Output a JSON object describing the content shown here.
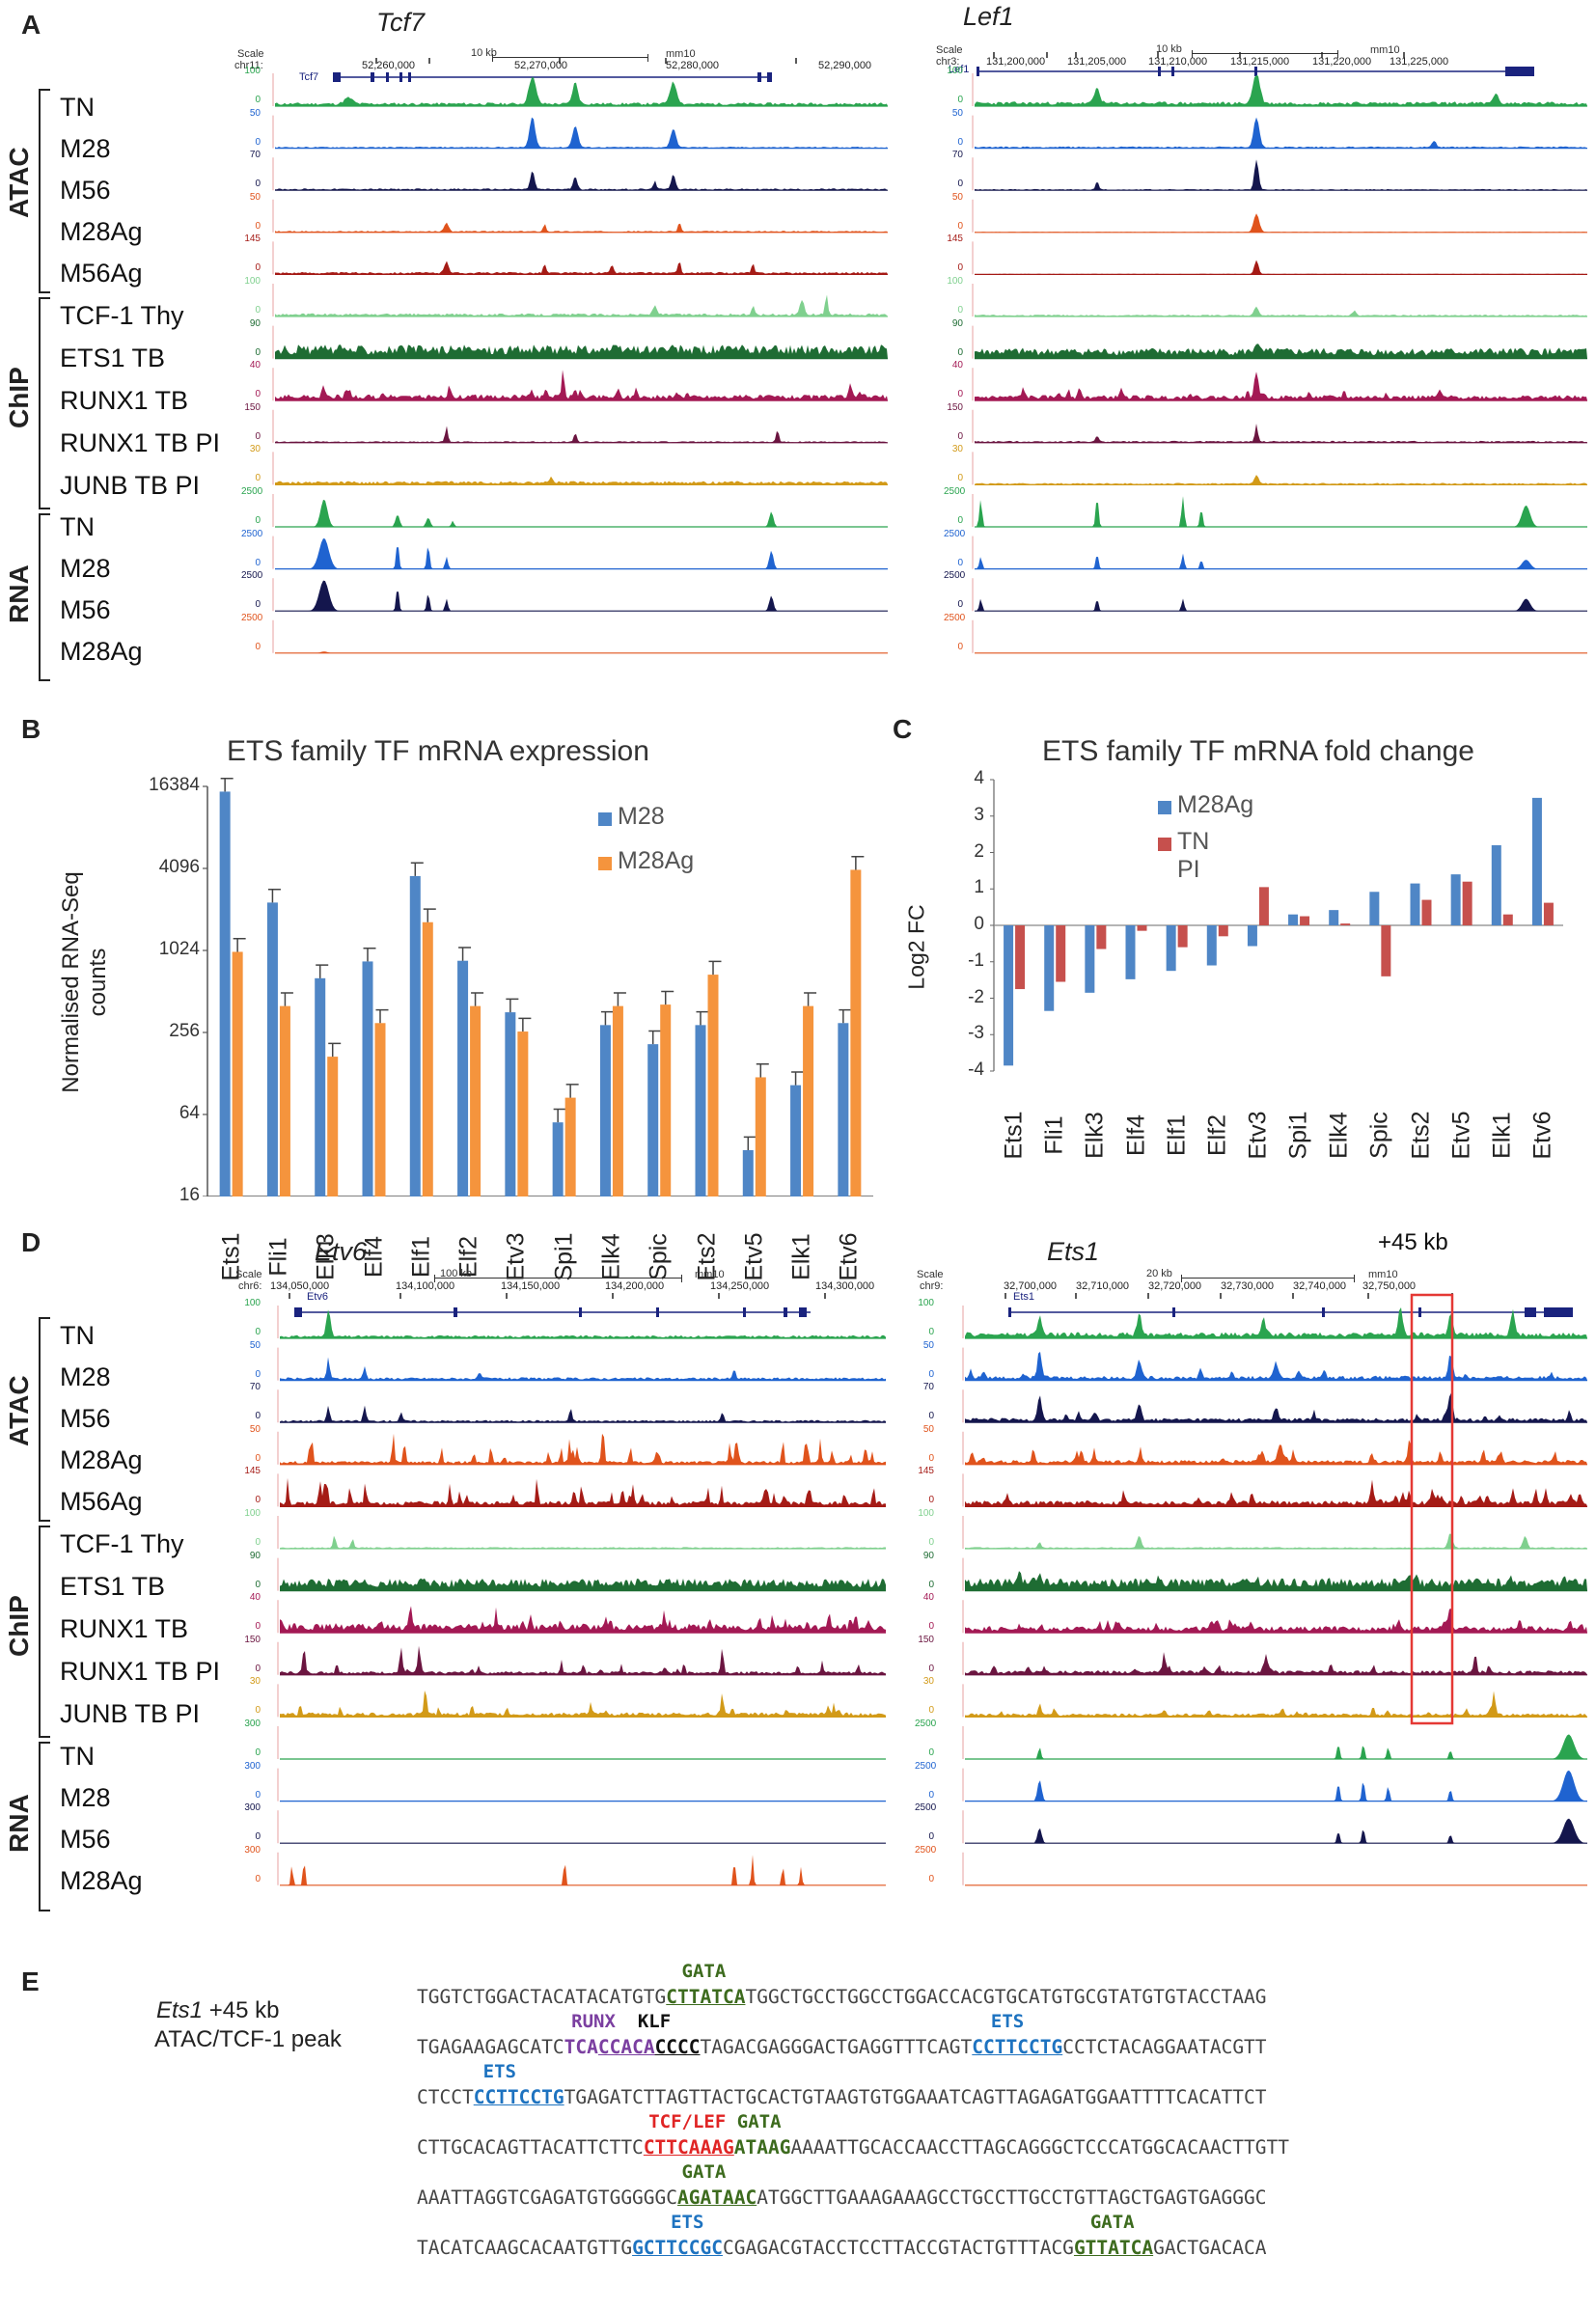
{
  "colors": {
    "TN": "#2aa44f",
    "M28": "#1f63d0",
    "M56": "#14164d",
    "M28Ag": "#e0531c",
    "M56Ag": "#a51b16",
    "TCF": "#7fd08e",
    "ETS1": "#1e6c33",
    "RUNX1": "#a31954",
    "RUNX1PI": "#6b1540",
    "JUNB": "#d29a18",
    "bar1": "#4f86c6",
    "bar2": "#f5943d",
    "fc1": "#4f86c6",
    "fc2": "#c6504d"
  },
  "panel_labels": [
    "A",
    "B",
    "C",
    "D",
    "E"
  ],
  "groups": {
    "atac": "ATAC",
    "chip": "ChIP",
    "rna": "RNA"
  },
  "panelA": {
    "rows": [
      "TN",
      "M28",
      "M56",
      "M28Ag",
      "M56Ag",
      "TCF-1 Thy",
      "ETS1 TB",
      "RUNX1 TB",
      "RUNX1 TB PI",
      "JUNB TB PI",
      "TN",
      "M28",
      "M56",
      "M28Ag"
    ],
    "left": {
      "gene": "Tcf7",
      "scale": "Scale",
      "chr": "chr11:",
      "scalebar": "10 kb",
      "assembly": "mm10",
      "coords": [
        "52,260,000",
        "52,270,000",
        "52,280,000",
        "52,290,000"
      ],
      "track_name": "Tcf7",
      "maxvals": [
        "100",
        "50",
        "70",
        "50",
        "145",
        "100",
        "90",
        "40",
        "150",
        "30",
        "2500",
        "2500",
        "2500",
        "2500"
      ]
    },
    "right": {
      "gene": "Lef1",
      "scale": "Scale",
      "chr": "chr3:",
      "scalebar": "10 kb",
      "assembly": "mm10",
      "coords": [
        "131,200,000",
        "131,205,000",
        "131,210,000",
        "131,215,000",
        "131,220,000",
        "131,225,000"
      ],
      "track_name": "Lef1",
      "maxvals": [
        "100",
        "50",
        "70",
        "50",
        "145",
        "100",
        "90",
        "40",
        "150",
        "30",
        "2500",
        "2500",
        "2500",
        "2500"
      ]
    }
  },
  "panelD": {
    "rows": [
      "TN",
      "M28",
      "M56",
      "M28Ag",
      "M56Ag",
      "TCF-1 Thy",
      "ETS1 TB",
      "RUNX1 TB",
      "RUNX1 TB PI",
      "JUNB TB PI",
      "TN",
      "M28",
      "M56",
      "M28Ag"
    ],
    "left": {
      "gene": "Etv6",
      "scale": "Scale",
      "chr": "chr6:",
      "scalebar": "100 kb",
      "assembly": "mm10",
      "coords": [
        "134,050,000",
        "134,100,000",
        "134,150,000",
        "134,200,000",
        "134,250,000",
        "134,300,000"
      ],
      "track_name": "Etv6",
      "maxvals": [
        "100",
        "50",
        "70",
        "50",
        "145",
        "100",
        "90",
        "40",
        "150",
        "30",
        "300",
        "300",
        "300",
        "300"
      ]
    },
    "right": {
      "gene": "Ets1",
      "scale": "Scale",
      "chr": "chr9:",
      "scalebar": "20 kb",
      "assembly": "mm10",
      "coords": [
        "32,700,000",
        "32,710,000",
        "32,720,000",
        "32,730,000",
        "32,740,000",
        "32,750,000"
      ],
      "track_name": "Ets1",
      "maxvals": [
        "100",
        "50",
        "70",
        "50",
        "145",
        "100",
        "90",
        "40",
        "150",
        "30",
        "2500",
        "2500",
        "2500",
        "2500"
      ],
      "annotation": "+45 kb"
    }
  },
  "chart_data": [
    {
      "type": "bar",
      "title": "ETS family TF mRNA expression",
      "ylabel": "Normalised RNA-Seq counts",
      "yscale": "log2",
      "ylim": [
        16,
        16384
      ],
      "yticks": [
        "16384",
        "4096",
        "1024",
        "256",
        "64",
        "16"
      ],
      "categories": [
        "Ets1",
        "Fli1",
        "Elk3",
        "Elf4",
        "Elf1",
        "Elf2",
        "Etv3",
        "Spi1",
        "Elk4",
        "Spic",
        "Ets2",
        "Etv5",
        "Elk1",
        "Etv6"
      ],
      "series": [
        {
          "name": "M28",
          "values": [
            15000,
            2300,
            640,
            850,
            3600,
            860,
            360,
            56,
            290,
            210,
            290,
            35,
            105,
            300
          ]
        },
        {
          "name": "M28Ag",
          "values": [
            1000,
            400,
            170,
            300,
            1650,
            400,
            260,
            85,
            400,
            410,
            680,
            120,
            400,
            4000
          ]
        }
      ]
    },
    {
      "type": "bar",
      "title": "ETS family TF mRNA fold change",
      "ylabel": "Log2 FC",
      "ylim": [
        -4,
        4
      ],
      "yticks": [
        "4",
        "3",
        "2",
        "1",
        "0",
        "-1",
        "-2",
        "-3",
        "-4"
      ],
      "categories": [
        "Ets1",
        "Fli1",
        "Elk3",
        "Elf4",
        "Elf1",
        "Elf2",
        "Etv3",
        "Spi1",
        "Elk4",
        "Spic",
        "Ets2",
        "Etv5",
        "Elk1",
        "Etv6"
      ],
      "series": [
        {
          "name": "M28Ag",
          "values": [
            -3.85,
            -2.35,
            -1.85,
            -1.48,
            -1.25,
            -1.1,
            -0.57,
            0.3,
            0.42,
            0.92,
            1.15,
            1.4,
            2.2,
            3.5
          ]
        },
        {
          "name": "TN PI",
          "values": [
            -1.75,
            -1.55,
            -0.65,
            -0.15,
            -0.6,
            -0.3,
            1.05,
            0.25,
            0.05,
            -1.4,
            0.7,
            1.2,
            0.3,
            0.62
          ]
        }
      ]
    }
  ],
  "panelE": {
    "label_gene": "Ets1",
    "label_rest": " +45 kb",
    "label_line2": "ATAC/TCF-1 peak",
    "lines": [
      {
        "top": [
          {
            "pre": "                        ",
            "t": "GATA",
            "c": "#3d6b1e"
          }
        ],
        "segs": [
          {
            "t": "TGGTCTGGACTACATACATGTG"
          },
          {
            "t": "CTTATCA",
            "c": "#3d6b1e",
            "u": true
          },
          {
            "t": "TGGCTGCCTGGCCTGGACCACGTGCATGTGCGTATGTGTACCTAAG"
          }
        ]
      },
      {
        "top": [
          {
            "pre": "              ",
            "t": "RUNX",
            "c": "#7b3fa0"
          },
          {
            "pre": "  ",
            "t": "KLF",
            "c": "#111111"
          },
          {
            "pre": "                             ",
            "t": "ETS",
            "c": "#1e73c0"
          }
        ],
        "segs": [
          {
            "t": "TGAGAAGAGCATC"
          },
          {
            "t": "TCA",
            "c": "#7b3fa0",
            "u": false
          },
          {
            "t": "CCACA",
            "c": "#7b3fa0",
            "u": true
          },
          {
            "t": "CCCC",
            "c": "#111111",
            "u": true
          },
          {
            "t": "TAGACGAGGGACTGAGGTTTCAGT"
          },
          {
            "t": "CCTTCCTG",
            "c": "#1e73c0",
            "u": true
          },
          {
            "t": "CCTCTACAGGAATACGTT"
          }
        ]
      },
      {
        "top": [
          {
            "pre": "      ",
            "t": "ETS",
            "c": "#1e73c0"
          }
        ],
        "segs": [
          {
            "t": "CTCCT"
          },
          {
            "t": "CCTTCCTG",
            "c": "#1e73c0",
            "u": true
          },
          {
            "t": "TGAGATCTTAGTTACTGCACTGTAAGTGTGGAAATCAGTTAGAGATGGAATTTTCACATTCT"
          }
        ]
      },
      {
        "top": [
          {
            "pre": "                     ",
            "t": "TCF/LEF",
            "c": "#e02525"
          },
          {
            "pre": " ",
            "t": "GATA",
            "c": "#3d6b1e"
          }
        ],
        "segs": [
          {
            "t": "CTTGCACAGTTACATTCTTC"
          },
          {
            "t": "CTTCAAAG",
            "c": "#e02525",
            "u": true
          },
          {
            "t": "ATAAG",
            "c": "#3d6b1e",
            "u": false
          },
          {
            "t": "AAAATTGCACCAACCTTAGCAGGGCTCCCATGGCACAACTTGTT"
          }
        ]
      },
      {
        "top": [
          {
            "pre": "                        ",
            "t": "GATA",
            "c": "#3d6b1e"
          }
        ],
        "segs": [
          {
            "t": "AAATTAGGTCGAGATGTGGGGGC"
          },
          {
            "t": "AGATAAC",
            "c": "#3d6b1e",
            "u": true
          },
          {
            "t": "ATGGCTTGAAAGAAAGCCTGCCTTGCCTGTTAGCTGAGTGAGGGC"
          }
        ]
      },
      {
        "top": [
          {
            "pre": "                       ",
            "t": "ETS",
            "c": "#1e73c0"
          },
          {
            "pre": "                                   ",
            "t": "GATA",
            "c": "#3d6b1e"
          }
        ],
        "segs": [
          {
            "t": "TACATCAAGCACAATGTTG"
          },
          {
            "t": "GCTTCCGC",
            "c": "#1e73c0",
            "u": true
          },
          {
            "t": "CGAGACGTACCTCCTTACCGTACTGTTTACG"
          },
          {
            "t": "GTTATCA",
            "c": "#3d6b1e",
            "u": true
          },
          {
            "t": "GACTGACACA"
          }
        ]
      }
    ]
  }
}
